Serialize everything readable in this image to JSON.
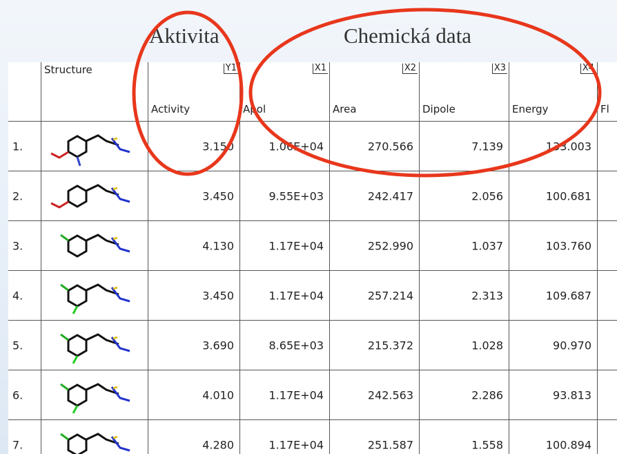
{
  "annotations": {
    "activity": "Aktivita",
    "chemical": "Chemická data"
  },
  "table": {
    "columns": [
      {
        "name": "Structure",
        "tag": null
      },
      {
        "name": "Activity",
        "tag": "Y1"
      },
      {
        "name": "Apol",
        "tag": "X1"
      },
      {
        "name": "Area",
        "tag": "X2"
      },
      {
        "name": "Dipole",
        "tag": "X3"
      },
      {
        "name": "Energy",
        "tag": "X4"
      },
      {
        "name": "Fl",
        "tag": null
      }
    ],
    "rows": [
      [
        "1.",
        "3.150",
        "1.06E+04",
        "270.566",
        "7.139",
        "133.003"
      ],
      [
        "2.",
        "3.450",
        "9.55E+03",
        "242.417",
        "2.056",
        "100.681"
      ],
      [
        "3.",
        "4.130",
        "1.17E+04",
        "252.990",
        "1.037",
        "103.760"
      ],
      [
        "4.",
        "3.450",
        "1.17E+04",
        "257.214",
        "2.313",
        "109.687"
      ],
      [
        "5.",
        "3.690",
        "8.65E+03",
        "215.372",
        "1.028",
        "90.970"
      ],
      [
        "6.",
        "4.010",
        "1.17E+04",
        "242.563",
        "2.286",
        "93.813"
      ],
      [
        "7.",
        "4.280",
        "1.17E+04",
        "251.587",
        "1.558",
        "100.894"
      ]
    ]
  }
}
